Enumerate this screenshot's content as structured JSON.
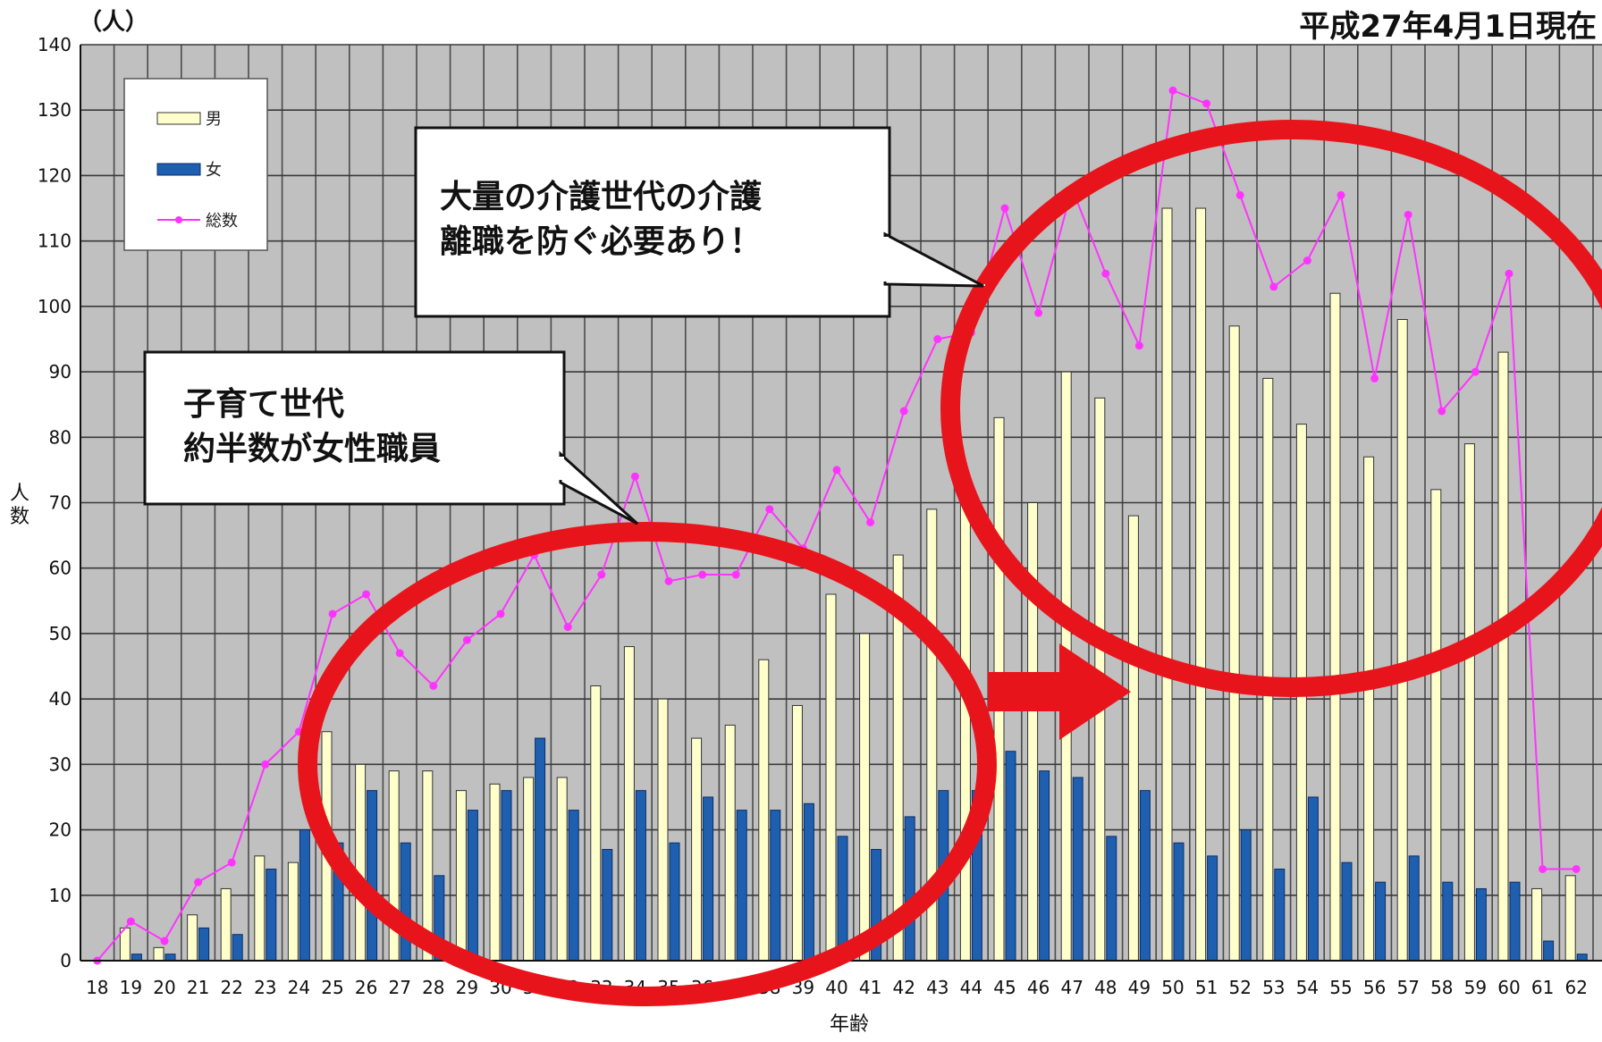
{
  "unit_label": "（人）",
  "date_label": "平成27年4月1日現在",
  "callouts": {
    "care_line1": "大量の介護世代の介護",
    "care_line2": "離職を防ぐ必要あり！",
    "child_line1": "子育て世代",
    "child_line2": "約半数が女性職員"
  },
  "colors": {
    "male_bar": "#ffffcc",
    "female_bar": "#1f5fb0",
    "total_line": "#ff33ff",
    "plot_bg": "#c0c0c0",
    "highlight_red": "#e8141c"
  },
  "chart_data": {
    "type": "bar",
    "xlabel": "年齢",
    "ylabel": "人数",
    "ylim": [
      0,
      140
    ],
    "ytick_step": 10,
    "grid": true,
    "legend_position": "top-left",
    "categories": [
      "18",
      "19",
      "20",
      "21",
      "22",
      "23",
      "24",
      "25",
      "26",
      "27",
      "28",
      "29",
      "30",
      "31",
      "32",
      "33",
      "34",
      "35",
      "36",
      "37",
      "38",
      "39",
      "40",
      "41",
      "42",
      "43",
      "44",
      "45",
      "46",
      "47",
      "48",
      "49",
      "50",
      "51",
      "52",
      "53",
      "54",
      "55",
      "56",
      "57",
      "58",
      "59",
      "60",
      "61",
      "62"
    ],
    "series": [
      {
        "name": "男",
        "type": "bar",
        "values": [
          0,
          5,
          2,
          7,
          11,
          16,
          15,
          35,
          30,
          29,
          29,
          26,
          27,
          28,
          28,
          42,
          48,
          40,
          34,
          36,
          46,
          39,
          56,
          50,
          62,
          69,
          70,
          83,
          70,
          90,
          86,
          68,
          115,
          115,
          97,
          89,
          82,
          102,
          77,
          98,
          72,
          79,
          93,
          11,
          13
        ]
      },
      {
        "name": "女",
        "type": "bar",
        "values": [
          0,
          1,
          1,
          5,
          4,
          14,
          20,
          18,
          26,
          18,
          13,
          23,
          26,
          34,
          23,
          17,
          26,
          18,
          25,
          23,
          23,
          24,
          19,
          17,
          22,
          26,
          26,
          32,
          29,
          28,
          19,
          26,
          18,
          16,
          20,
          14,
          25,
          15,
          12,
          16,
          12,
          11,
          12,
          3,
          1
        ]
      },
      {
        "name": "総数",
        "type": "line",
        "values": [
          0,
          6,
          3,
          12,
          15,
          30,
          35,
          53,
          56,
          47,
          42,
          49,
          53,
          62,
          51,
          59,
          74,
          58,
          59,
          59,
          69,
          63,
          75,
          67,
          84,
          95,
          96,
          115,
          99,
          118,
          105,
          94,
          133,
          131,
          117,
          103,
          107,
          117,
          89,
          114,
          84,
          90,
          105,
          14,
          14
        ]
      }
    ]
  }
}
